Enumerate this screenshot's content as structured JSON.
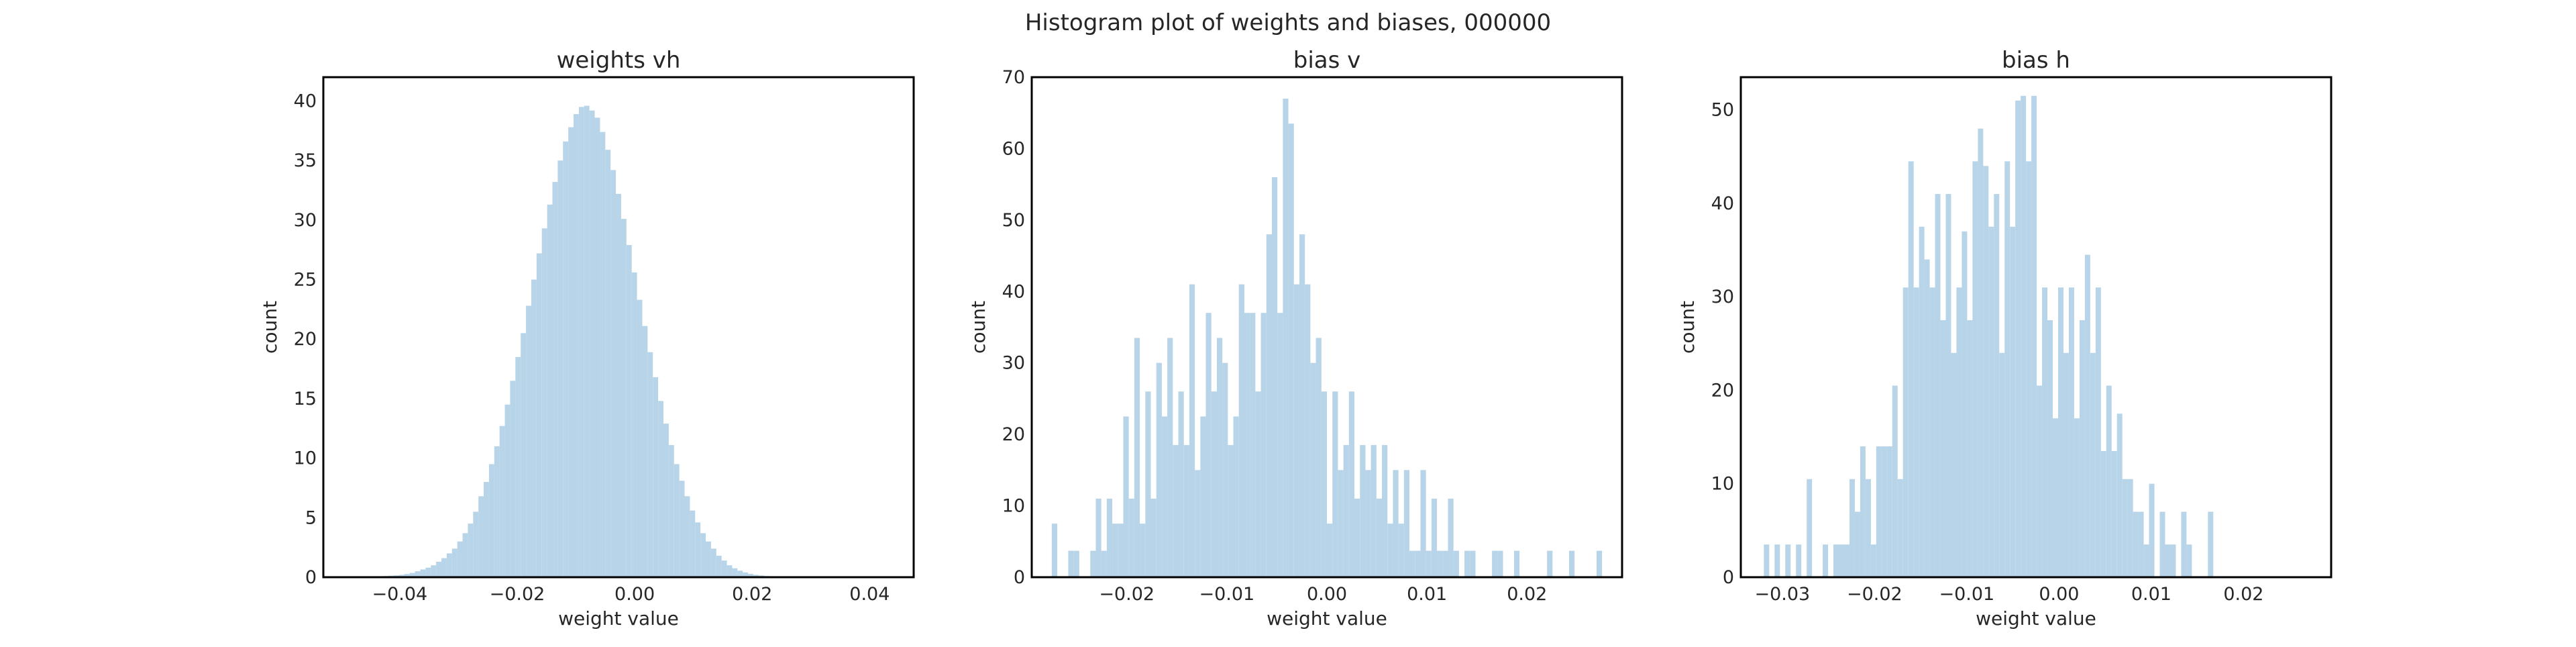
{
  "figure": {
    "suptitle": "Histogram plot of weights and biases, 000000"
  },
  "colors": {
    "bar": "#b8d4e8",
    "frame": "#000000",
    "text": "#262626"
  },
  "chart_data": [
    {
      "type": "bar",
      "title": "weights vh",
      "xlabel": "weight value",
      "ylabel": "count",
      "xlim": [
        -0.053,
        0.0475
      ],
      "ylim": [
        0,
        42
      ],
      "xticks": [
        -0.04,
        -0.02,
        0.0,
        0.02,
        0.04
      ],
      "xtick_labels": [
        "−0.04",
        "−0.02",
        "0.00",
        "0.02",
        "0.04"
      ],
      "yticks": [
        0,
        5,
        10,
        15,
        20,
        25,
        30,
        35,
        40
      ],
      "ytick_labels": [
        "0",
        "5",
        "10",
        "15",
        "20",
        "25",
        "30",
        "35",
        "40"
      ],
      "bin_start": -0.05,
      "bin_width": 0.0009,
      "values": [
        0.01,
        0.01,
        0.02,
        0.03,
        0.04,
        0.05,
        0.06,
        0.08,
        0.1,
        0.13,
        0.16,
        0.2,
        0.27,
        0.36,
        0.5,
        0.65,
        0.8,
        1.0,
        1.3,
        1.6,
        2.0,
        2.4,
        3.0,
        3.7,
        4.5,
        5.5,
        6.8,
        8.0,
        9.5,
        11.0,
        12.7,
        14.5,
        16.5,
        18.5,
        20.5,
        22.8,
        25.0,
        27.2,
        29.3,
        31.3,
        33.2,
        35.0,
        36.6,
        37.8,
        38.9,
        39.5,
        39.6,
        39.2,
        38.6,
        37.4,
        35.9,
        34.2,
        32.2,
        30.1,
        27.9,
        25.6,
        23.3,
        21.1,
        18.9,
        16.8,
        14.8,
        12.9,
        11.1,
        9.5,
        8.1,
        6.8,
        5.6,
        4.6,
        3.7,
        3.0,
        2.4,
        1.8,
        1.4,
        1.0,
        0.75,
        0.55,
        0.4,
        0.28,
        0.2,
        0.15,
        0.1,
        0.07,
        0.05,
        0.03,
        0.02,
        0.01
      ]
    },
    {
      "type": "bar",
      "title": "bias v",
      "xlabel": "weight value",
      "ylabel": "count",
      "xlim": [
        -0.0295,
        0.0295
      ],
      "ylim": [
        0,
        70
      ],
      "xticks": [
        -0.02,
        -0.01,
        0.0,
        0.01,
        0.02
      ],
      "xtick_labels": [
        "−0.02",
        "−0.01",
        "0.00",
        "0.01",
        "0.02"
      ],
      "yticks": [
        0,
        10,
        20,
        30,
        40,
        50,
        60,
        70
      ],
      "ytick_labels": [
        "0",
        "10",
        "20",
        "30",
        "40",
        "50",
        "60",
        "70"
      ],
      "bin_start": -0.0275,
      "bin_width": 0.00055,
      "values": [
        7.5,
        0,
        0,
        3.7,
        3.7,
        0,
        0,
        3.7,
        11,
        3.7,
        11,
        7.5,
        7.5,
        22.5,
        11,
        33.5,
        7.5,
        26,
        11,
        30,
        22.5,
        33.5,
        18.5,
        26,
        18.5,
        41,
        15,
        22.5,
        37,
        26,
        33.5,
        30,
        18.5,
        22.5,
        41,
        37,
        37,
        26,
        37,
        48,
        56,
        37,
        67,
        63.5,
        41,
        48,
        41,
        30,
        33.5,
        26,
        7.5,
        26,
        15,
        18.5,
        26,
        11,
        18.5,
        15,
        18.5,
        11,
        18.5,
        7.5,
        15,
        7.5,
        15,
        3.7,
        3.7,
        15,
        3.7,
        11,
        3.7,
        3.7,
        11,
        3.7,
        0,
        3.7,
        3.7,
        0,
        0,
        0,
        3.7,
        3.7,
        0,
        0,
        3.7,
        0,
        0,
        0,
        0,
        0,
        3.7,
        0,
        0,
        0,
        3.7,
        0,
        0,
        0,
        0,
        3.7
      ]
    },
    {
      "type": "bar",
      "title": "bias h",
      "xlabel": "weight value",
      "ylabel": "count",
      "xlim": [
        -0.0345,
        0.0295
      ],
      "ylim": [
        0,
        53.5
      ],
      "xticks": [
        -0.03,
        -0.02,
        -0.01,
        0.0,
        0.01,
        0.02
      ],
      "xtick_labels": [
        "−0.03",
        "−0.02",
        "−0.01",
        "0.00",
        "0.01",
        "0.02"
      ],
      "yticks": [
        0,
        10,
        20,
        30,
        40,
        50
      ],
      "ytick_labels": [
        "0",
        "10",
        "20",
        "30",
        "40",
        "50"
      ],
      "bin_start": -0.032,
      "bin_width": 0.00058,
      "values": [
        3.5,
        0,
        3.5,
        0,
        3.5,
        0,
        3.5,
        0,
        10.5,
        0,
        0,
        3.5,
        0,
        3.5,
        3.5,
        3.5,
        10.5,
        7,
        14,
        10.5,
        3.5,
        14,
        14,
        14,
        20.5,
        10.5,
        31,
        44.5,
        31,
        37.5,
        34,
        31,
        41,
        27.5,
        41,
        24,
        31,
        37,
        27.5,
        44.5,
        48,
        44,
        37.5,
        41,
        24,
        44.5,
        37.5,
        51,
        51.5,
        44.5,
        51.5,
        20.5,
        31,
        27.5,
        17,
        31,
        24,
        31,
        17,
        27.5,
        34.5,
        24,
        31,
        13.5,
        20.5,
        13.5,
        17.5,
        10.5,
        10.5,
        7,
        7,
        3.5,
        10,
        0,
        7,
        3.5,
        3.5,
        0,
        7,
        3.5,
        0,
        0,
        0,
        7
      ]
    }
  ]
}
